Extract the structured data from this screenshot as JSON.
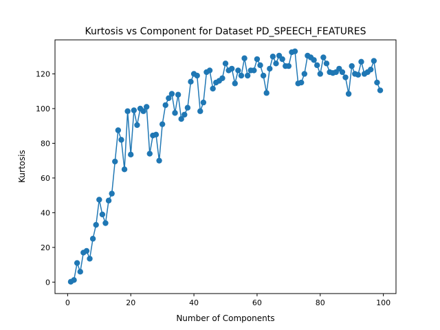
{
  "chart_data": {
    "type": "line",
    "title": "Kurtosis vs Component for Dataset PD_SPEECH_FEATURES",
    "xlabel": "Number of Components",
    "ylabel": "Kurtosis",
    "xlim": [
      -4,
      104
    ],
    "ylim": [
      -6.6,
      139.6
    ],
    "xticks": [
      0,
      20,
      40,
      60,
      80,
      100
    ],
    "yticks": [
      0,
      20,
      40,
      60,
      80,
      100,
      120
    ],
    "grid": false,
    "series_color": "#1f77b4",
    "marker": "circle",
    "x": [
      1,
      2,
      3,
      4,
      5,
      6,
      7,
      8,
      9,
      10,
      11,
      12,
      13,
      14,
      15,
      16,
      17,
      18,
      19,
      20,
      21,
      22,
      23,
      24,
      25,
      26,
      27,
      28,
      29,
      30,
      31,
      32,
      33,
      34,
      35,
      36,
      37,
      38,
      39,
      40,
      41,
      42,
      43,
      44,
      45,
      46,
      47,
      48,
      49,
      50,
      51,
      52,
      53,
      54,
      55,
      56,
      57,
      58,
      59,
      60,
      61,
      62,
      63,
      64,
      65,
      66,
      67,
      68,
      69,
      70,
      71,
      72,
      73,
      74,
      75,
      76,
      77,
      78,
      79,
      80,
      81,
      82,
      83,
      84,
      85,
      86,
      87,
      88,
      89,
      90,
      91,
      92,
      93,
      94,
      95,
      96,
      97,
      98,
      99
    ],
    "y": [
      0.2,
      1.2,
      11,
      6,
      17,
      18,
      13.5,
      25,
      33,
      47.5,
      39,
      34,
      47,
      51,
      69.5,
      87.5,
      82,
      65,
      98.5,
      73.5,
      99,
      90.5,
      100,
      98.5,
      101,
      74,
      84.5,
      85,
      70,
      91,
      102,
      106,
      108.5,
      97.5,
      108,
      94,
      96.5,
      100.5,
      115.5,
      120,
      119,
      98.5,
      103.5,
      121,
      122,
      111.5,
      115,
      116,
      117.5,
      126,
      122,
      123,
      114.5,
      122,
      119,
      129,
      119,
      122,
      122,
      128.5,
      125,
      119,
      109,
      123,
      130,
      126,
      130.5,
      128.5,
      124.5,
      124.5,
      132.5,
      133,
      114.5,
      115,
      120,
      130.5,
      129.5,
      128,
      125,
      120,
      129.5,
      126,
      121,
      120.5,
      121,
      123,
      121,
      118,
      108.5,
      124.5,
      120,
      119.5,
      127,
      120,
      121,
      122.5,
      127.5,
      115,
      110.5
    ]
  }
}
